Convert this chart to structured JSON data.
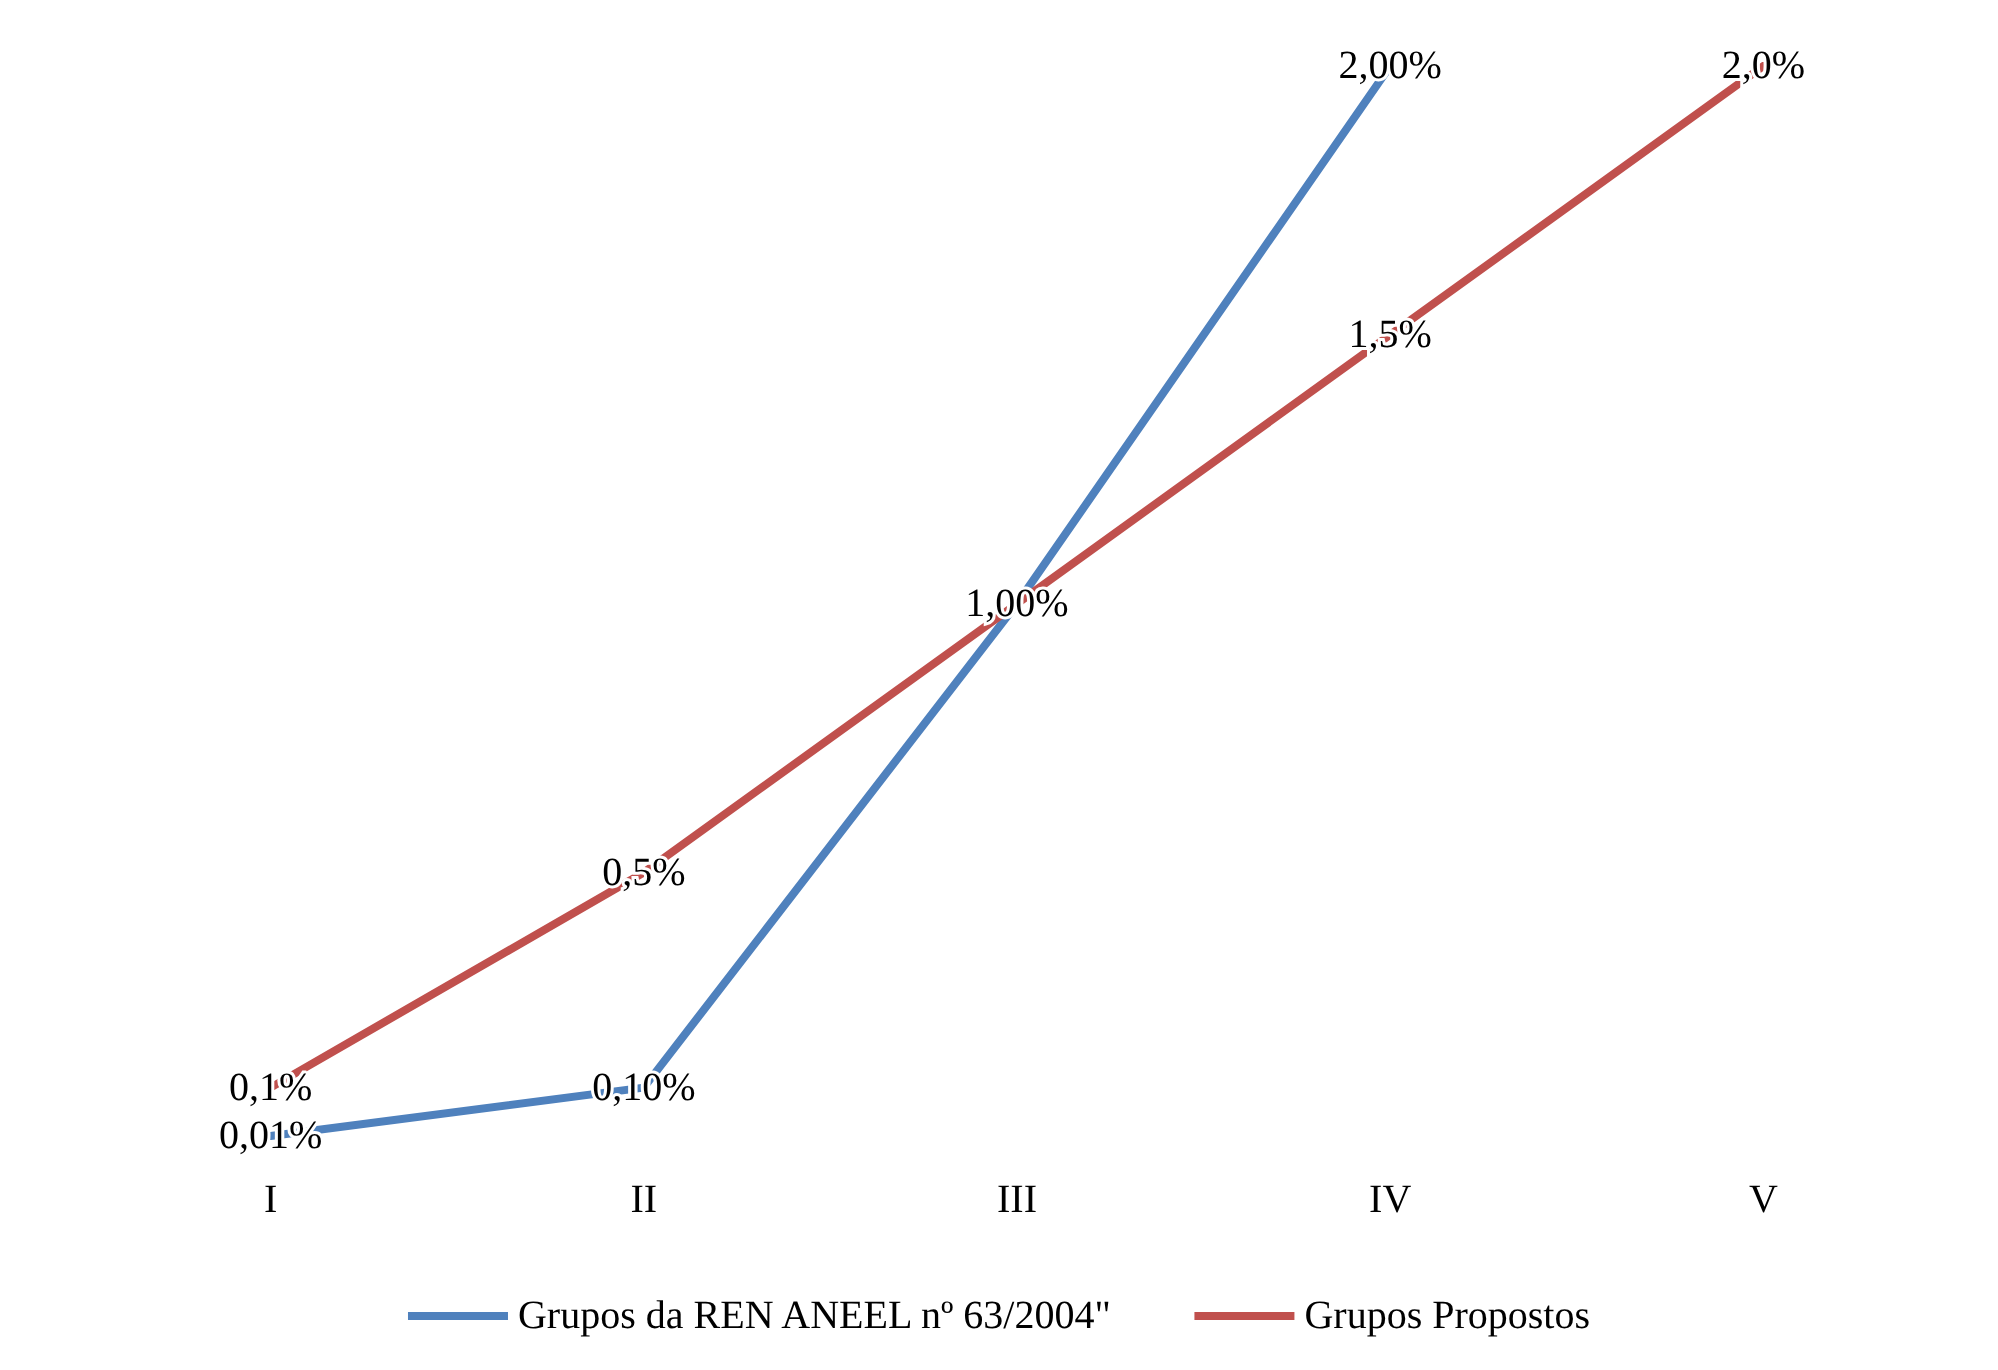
{
  "chart_data": {
    "type": "line",
    "categories": [
      "I",
      "II",
      "III",
      "IV",
      "V"
    ],
    "series": [
      {
        "name": "Grupos da REN ANEEL nº 63/2004\"",
        "color": "#4f81bd",
        "values": [
          0.01,
          0.1,
          1.0,
          2.0,
          null
        ],
        "value_labels": [
          "0,01%",
          "0,10%",
          "1,00%",
          "2,00%",
          null
        ]
      },
      {
        "name": "Grupos Propostos",
        "color": "#c0504d",
        "values": [
          0.1,
          0.5,
          1.0,
          1.5,
          2.0
        ],
        "value_labels": [
          "0,1%",
          "0,5%",
          null,
          "1,5%",
          "2,0%"
        ]
      }
    ],
    "legend": "bottom",
    "marker": "none",
    "line_style": "solid",
    "grid": false
  }
}
